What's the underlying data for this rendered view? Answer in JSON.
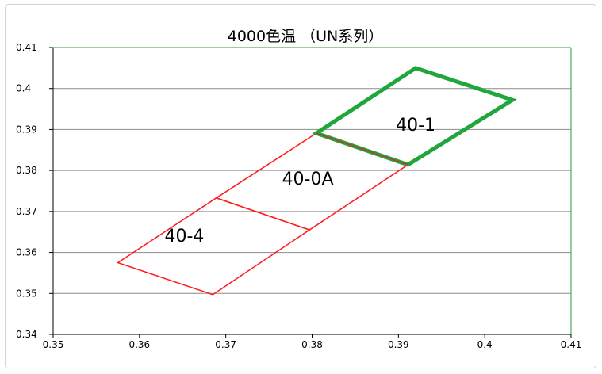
{
  "chart_data": {
    "type": "scatter",
    "title": "4000色温 （UN系列）",
    "xlabel": "",
    "ylabel": "",
    "xlim": [
      0.35,
      0.41
    ],
    "ylim": [
      0.34,
      0.41
    ],
    "x_ticks": [
      "0.35",
      "0.36",
      "0.37",
      "0.38",
      "0.39",
      "0.4",
      "0.41"
    ],
    "y_ticks": [
      "0.34",
      "0.35",
      "0.36",
      "0.37",
      "0.38",
      "0.39",
      "0.4",
      "0.41"
    ],
    "grid": "horizontal",
    "colors": {
      "grid": "#8c8c8c",
      "plot_border": "#2e9c46",
      "red_region": "#ff2020",
      "green_region": "#1fa63c",
      "shared_edge": "#c0392b"
    },
    "regions": [
      {
        "name": "40-4",
        "label": "40-4",
        "color": "red",
        "points": [
          [
            0.3575,
            0.3575
          ],
          [
            0.3685,
            0.3497
          ],
          [
            0.3797,
            0.3655
          ],
          [
            0.3689,
            0.3733
          ]
        ]
      },
      {
        "name": "40-0A",
        "label": "40-0A",
        "color": "red",
        "points": [
          [
            0.3689,
            0.3733
          ],
          [
            0.3797,
            0.3655
          ],
          [
            0.3911,
            0.3814
          ],
          [
            0.3805,
            0.3891
          ]
        ]
      },
      {
        "name": "40-1",
        "label": "40-1",
        "color": "green",
        "points": [
          [
            0.3805,
            0.3891
          ],
          [
            0.3911,
            0.3814
          ],
          [
            0.4032,
            0.3972
          ],
          [
            0.392,
            0.405
          ]
        ]
      }
    ],
    "label_positions": {
      "40-4": [
        0.3652,
        0.3626
      ],
      "40-0A": [
        0.3795,
        0.3765
      ],
      "40-1": [
        0.392,
        0.3897
      ]
    }
  }
}
